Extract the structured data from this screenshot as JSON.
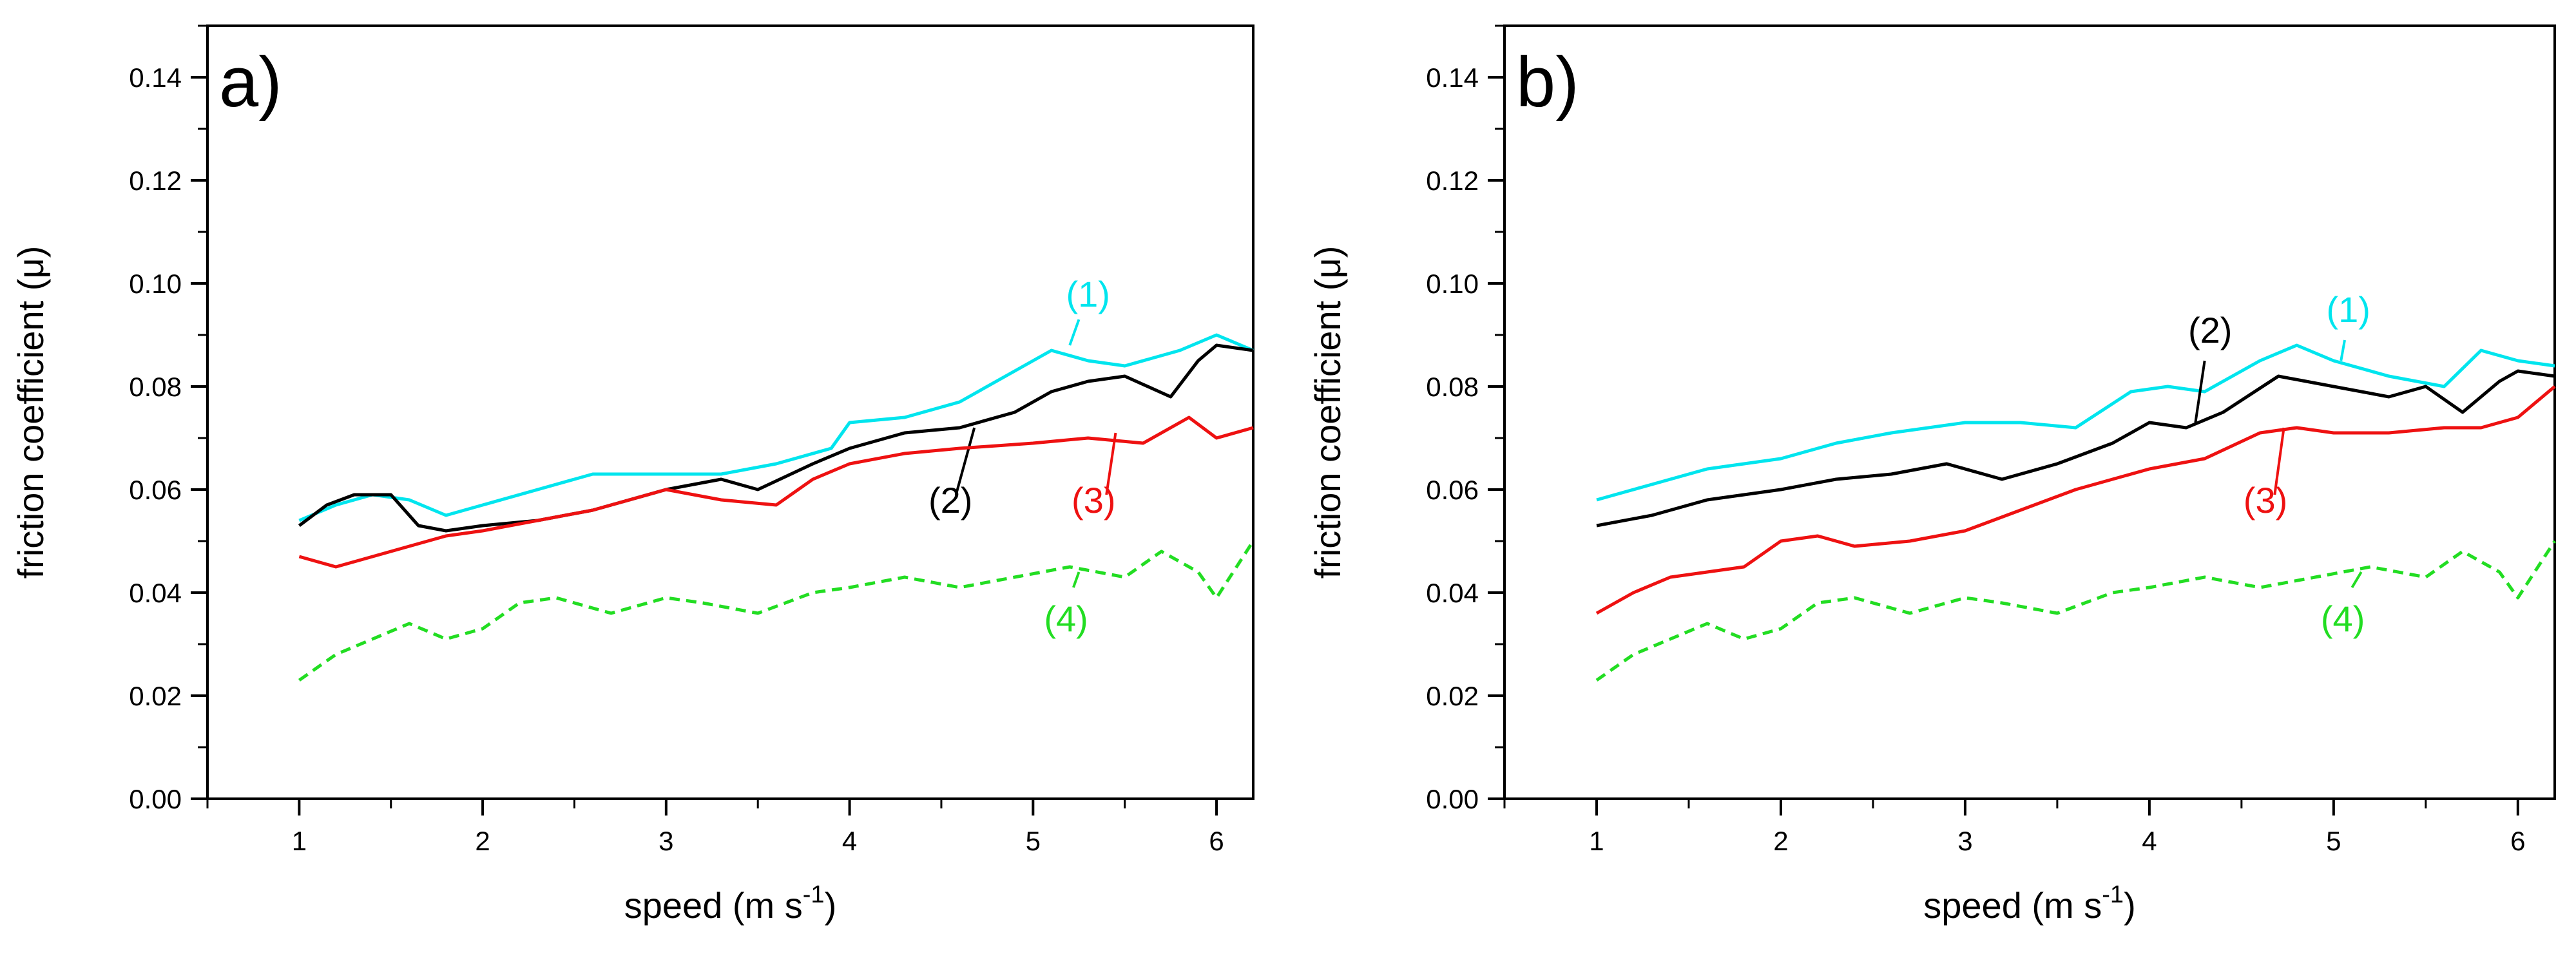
{
  "figure": {
    "panels": [
      "a)",
      "b)"
    ]
  },
  "colors": {
    "series1": "#00e5ee",
    "series2": "#000000",
    "series3": "#ee1111",
    "series4": "#22dd22",
    "axis": "#000000"
  },
  "chart_data": [
    {
      "type": "line",
      "panel_label": "a)",
      "xlabel": "speed (m s⁻¹)",
      "xlabel_main": "speed (m s",
      "xlabel_sup": "-1",
      "xlabel_close": ")",
      "ylabel": "friction coefficient (μ)",
      "xlim": [
        0.5,
        6.2
      ],
      "ylim": [
        0.0,
        0.15
      ],
      "xticks": [
        1,
        2,
        3,
        4,
        5,
        6
      ],
      "xtick_labels": [
        "1",
        "2",
        "3",
        "4",
        "5",
        "6"
      ],
      "yticks": [
        0.0,
        0.02,
        0.04,
        0.06,
        0.08,
        0.1,
        0.12,
        0.14
      ],
      "ytick_labels": [
        "0.00",
        "0.02",
        "0.04",
        "0.06",
        "0.08",
        "0.10",
        "0.12",
        "0.14"
      ],
      "series": [
        {
          "name": "(1)",
          "color_key": "series1",
          "dashed": false,
          "x": [
            1.0,
            1.2,
            1.4,
            1.6,
            1.8,
            2.0,
            2.3,
            2.6,
            3.0,
            3.3,
            3.6,
            3.9,
            4.0,
            4.3,
            4.6,
            4.9,
            5.1,
            5.3,
            5.5,
            5.8,
            6.0,
            6.2
          ],
          "values": [
            0.054,
            0.057,
            0.059,
            0.058,
            0.055,
            0.057,
            0.06,
            0.063,
            0.063,
            0.063,
            0.065,
            0.068,
            0.073,
            0.074,
            0.077,
            0.083,
            0.087,
            0.085,
            0.084,
            0.087,
            0.09,
            0.087
          ],
          "label_pos": [
            5.3,
            0.0955
          ],
          "leader": [
            [
              5.25,
              0.093
            ],
            [
              5.2,
              0.088
            ]
          ]
        },
        {
          "name": "(2)",
          "color_key": "series2",
          "dashed": false,
          "x": [
            1.0,
            1.15,
            1.3,
            1.5,
            1.65,
            1.8,
            2.0,
            2.3,
            2.6,
            3.0,
            3.3,
            3.5,
            3.8,
            4.0,
            4.3,
            4.6,
            4.9,
            5.1,
            5.3,
            5.5,
            5.75,
            5.9,
            6.0,
            6.2
          ],
          "values": [
            0.053,
            0.057,
            0.059,
            0.059,
            0.053,
            0.052,
            0.053,
            0.054,
            0.056,
            0.06,
            0.062,
            0.06,
            0.065,
            0.068,
            0.071,
            0.072,
            0.075,
            0.079,
            0.081,
            0.082,
            0.078,
            0.085,
            0.088,
            0.087
          ],
          "label_pos": [
            4.55,
            0.0555
          ],
          "leader": [
            [
              4.58,
              0.059
            ],
            [
              4.68,
              0.072
            ]
          ]
        },
        {
          "name": "(3)",
          "color_key": "series3",
          "dashed": false,
          "x": [
            1.0,
            1.2,
            1.4,
            1.6,
            1.8,
            2.0,
            2.3,
            2.6,
            3.0,
            3.3,
            3.6,
            3.8,
            4.0,
            4.3,
            4.6,
            5.0,
            5.3,
            5.6,
            5.85,
            6.0,
            6.2
          ],
          "values": [
            0.047,
            0.045,
            0.047,
            0.049,
            0.051,
            0.052,
            0.054,
            0.056,
            0.06,
            0.058,
            0.057,
            0.062,
            0.065,
            0.067,
            0.068,
            0.069,
            0.07,
            0.069,
            0.074,
            0.07,
            0.072
          ],
          "label_pos": [
            5.33,
            0.0555
          ],
          "leader": [
            [
              5.4,
              0.059
            ],
            [
              5.45,
              0.071
            ]
          ]
        },
        {
          "name": "(4)",
          "color_key": "series4",
          "dashed": true,
          "x": [
            1.0,
            1.2,
            1.4,
            1.6,
            1.8,
            2.0,
            2.2,
            2.4,
            2.7,
            3.0,
            3.2,
            3.5,
            3.8,
            4.0,
            4.3,
            4.6,
            4.9,
            5.2,
            5.5,
            5.7,
            5.9,
            6.0,
            6.2
          ],
          "values": [
            0.023,
            0.028,
            0.031,
            0.034,
            0.031,
            0.033,
            0.038,
            0.039,
            0.036,
            0.039,
            0.038,
            0.036,
            0.04,
            0.041,
            0.043,
            0.041,
            0.043,
            0.045,
            0.043,
            0.048,
            0.044,
            0.039,
            0.05
          ],
          "label_pos": [
            5.18,
            0.0325
          ],
          "leader": [
            [
              5.22,
              0.041
            ],
            [
              5.25,
              0.044
            ]
          ]
        }
      ]
    },
    {
      "type": "line",
      "panel_label": "b)",
      "xlabel": "speed (m s⁻¹)",
      "xlabel_main": "speed (m s",
      "xlabel_sup": "-1",
      "xlabel_close": ")",
      "ylabel": "friction coefficient (μ)",
      "xlim": [
        0.5,
        6.2
      ],
      "ylim": [
        0.0,
        0.15
      ],
      "xticks": [
        1,
        2,
        3,
        4,
        5,
        6
      ],
      "xtick_labels": [
        "1",
        "2",
        "3",
        "4",
        "5",
        "6"
      ],
      "yticks": [
        0.0,
        0.02,
        0.04,
        0.06,
        0.08,
        0.1,
        0.12,
        0.14
      ],
      "ytick_labels": [
        "0.00",
        "0.02",
        "0.04",
        "0.06",
        "0.08",
        "0.10",
        "0.12",
        "0.14"
      ],
      "series": [
        {
          "name": "(1)",
          "color_key": "series1",
          "dashed": false,
          "x": [
            1.0,
            1.3,
            1.6,
            2.0,
            2.3,
            2.6,
            3.0,
            3.3,
            3.6,
            3.9,
            4.1,
            4.3,
            4.6,
            4.8,
            5.0,
            5.3,
            5.6,
            5.8,
            6.0,
            6.2
          ],
          "values": [
            0.058,
            0.061,
            0.064,
            0.066,
            0.069,
            0.071,
            0.073,
            0.073,
            0.072,
            0.079,
            0.08,
            0.079,
            0.085,
            0.088,
            0.085,
            0.082,
            0.08,
            0.087,
            0.085,
            0.084
          ],
          "label_pos": [
            5.08,
            0.0925
          ],
          "leader": [
            [
              5.06,
              0.089
            ],
            [
              5.04,
              0.085
            ]
          ]
        },
        {
          "name": "(2)",
          "color_key": "series2",
          "dashed": false,
          "x": [
            1.0,
            1.3,
            1.6,
            2.0,
            2.3,
            2.6,
            2.9,
            3.2,
            3.5,
            3.8,
            4.0,
            4.2,
            4.4,
            4.7,
            5.0,
            5.3,
            5.5,
            5.7,
            5.9,
            6.0,
            6.2
          ],
          "values": [
            0.053,
            0.055,
            0.058,
            0.06,
            0.062,
            0.063,
            0.065,
            0.062,
            0.065,
            0.069,
            0.073,
            0.072,
            0.075,
            0.082,
            0.08,
            0.078,
            0.08,
            0.075,
            0.081,
            0.083,
            0.082
          ],
          "label_pos": [
            4.33,
            0.0885
          ],
          "leader": [
            [
              4.3,
              0.085
            ],
            [
              4.25,
              0.073
            ]
          ]
        },
        {
          "name": "(3)",
          "color_key": "series3",
          "dashed": false,
          "x": [
            1.0,
            1.2,
            1.4,
            1.6,
            1.8,
            2.0,
            2.2,
            2.4,
            2.7,
            3.0,
            3.3,
            3.6,
            4.0,
            4.3,
            4.6,
            4.8,
            5.0,
            5.3,
            5.6,
            5.8,
            6.0,
            6.2
          ],
          "values": [
            0.036,
            0.04,
            0.043,
            0.044,
            0.045,
            0.05,
            0.051,
            0.049,
            0.05,
            0.052,
            0.056,
            0.06,
            0.064,
            0.066,
            0.071,
            0.072,
            0.071,
            0.071,
            0.072,
            0.072,
            0.074,
            0.08
          ],
          "label_pos": [
            4.63,
            0.0555
          ],
          "leader": [
            [
              4.68,
              0.059
            ],
            [
              4.73,
              0.072
            ]
          ]
        },
        {
          "name": "(4)",
          "color_key": "series4",
          "dashed": true,
          "x": [
            1.0,
            1.2,
            1.4,
            1.6,
            1.8,
            2.0,
            2.2,
            2.4,
            2.7,
            3.0,
            3.2,
            3.5,
            3.8,
            4.0,
            4.3,
            4.6,
            4.9,
            5.2,
            5.5,
            5.7,
            5.9,
            6.0,
            6.2
          ],
          "values": [
            0.023,
            0.028,
            0.031,
            0.034,
            0.031,
            0.033,
            0.038,
            0.039,
            0.036,
            0.039,
            0.038,
            0.036,
            0.04,
            0.041,
            0.043,
            0.041,
            0.043,
            0.045,
            0.043,
            0.048,
            0.044,
            0.039,
            0.05
          ],
          "label_pos": [
            5.05,
            0.0325
          ],
          "leader": [
            [
              5.1,
              0.041
            ],
            [
              5.15,
              0.044
            ]
          ]
        }
      ]
    }
  ]
}
